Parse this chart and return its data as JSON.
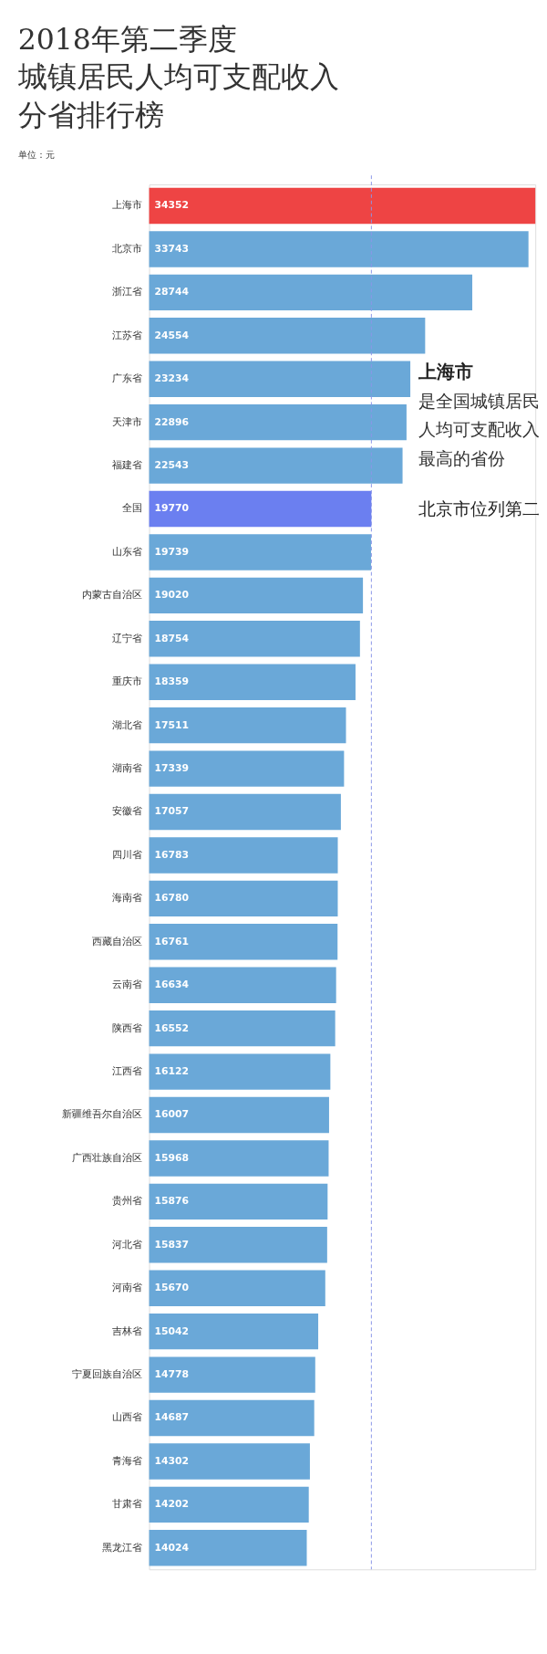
{
  "chart_data": {
    "type": "bar",
    "orientation": "horizontal",
    "title": [
      "2018年第二季度",
      "城镇居民人均可支配收入",
      "分省排行榜"
    ],
    "subtitle": "单位：元",
    "categories": [
      "上海市",
      "北京市",
      "浙江省",
      "江苏省",
      "广东省",
      "天津市",
      "福建省",
      "全国",
      "山东省",
      "内蒙古自治区",
      "辽宁省",
      "重庆市",
      "湖北省",
      "湖南省",
      "安徽省",
      "四川省",
      "海南省",
      "西藏自治区",
      "云南省",
      "陕西省",
      "江西省",
      "新疆维吾尔自治区",
      "广西壮族自治区",
      "贵州省",
      "河北省",
      "河南省",
      "吉林省",
      "宁夏回族自治区",
      "山西省",
      "青海省",
      "甘肃省",
      "黑龙江省"
    ],
    "values": [
      34352,
      33743,
      28744,
      24554,
      23234,
      22896,
      22543,
      19770,
      19739,
      19020,
      18754,
      18359,
      17511,
      17339,
      17057,
      16783,
      16780,
      16761,
      16634,
      16552,
      16122,
      16007,
      15968,
      15876,
      15837,
      15670,
      15042,
      14778,
      14687,
      14302,
      14202,
      14024
    ],
    "colors": [
      "#ee4444",
      "#6aa8d8",
      "#6aa8d8",
      "#6aa8d8",
      "#6aa8d8",
      "#6aa8d8",
      "#6aa8d8",
      "#6b7ff0",
      "#6aa8d8",
      "#6aa8d8",
      "#6aa8d8",
      "#6aa8d8",
      "#6aa8d8",
      "#6aa8d8",
      "#6aa8d8",
      "#6aa8d8",
      "#6aa8d8",
      "#6aa8d8",
      "#6aa8d8",
      "#6aa8d8",
      "#6aa8d8",
      "#6aa8d8",
      "#6aa8d8",
      "#6aa8d8",
      "#6aa8d8",
      "#6aa8d8",
      "#6aa8d8",
      "#6aa8d8",
      "#6aa8d8",
      "#6aa8d8",
      "#6aa8d8",
      "#6aa8d8"
    ],
    "data_labels": true,
    "ref_lines": [
      {
        "axis": "x",
        "value": 19770,
        "color": "#8a96e8",
        "line_style": "dashed"
      }
    ],
    "annotations": [
      "上海市",
      "是全国城镇居民人均可支配收入最高的省份",
      "北京市位列第二"
    ]
  }
}
